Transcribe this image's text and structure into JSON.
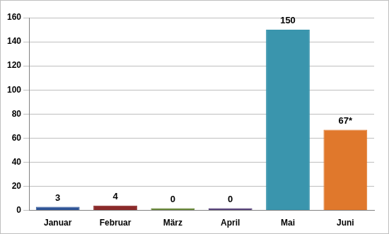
{
  "chart_data": {
    "type": "bar",
    "categories": [
      "Januar",
      "Februar",
      "März",
      "April",
      "Mai",
      "Juni"
    ],
    "values": [
      3,
      4,
      0,
      0,
      150,
      67
    ],
    "value_labels": [
      "3",
      "4",
      "0",
      "0",
      "150",
      "67*"
    ],
    "colors": [
      "#2f5597",
      "#8b2a2a",
      "#5e7f2a",
      "#4b3570",
      "#3a95ad",
      "#e0782c"
    ],
    "ylim": [
      0,
      160
    ],
    "yticks": [
      0,
      20,
      40,
      60,
      80,
      100,
      120,
      140,
      160
    ],
    "grid": true,
    "data_labels": true
  }
}
